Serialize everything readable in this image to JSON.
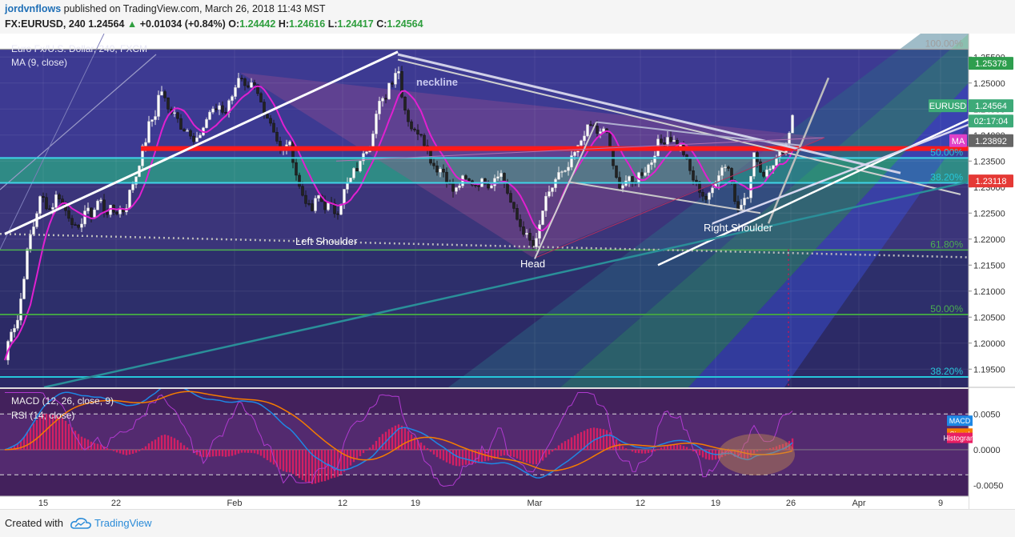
{
  "header": {
    "author": "jordvnflows",
    "published": "published on TradingView.com, March 26, 2018 11:43 MST",
    "symbol": "FX:EURUSD, 240",
    "last": "1.24564",
    "change": "+0.01034 (+0.84%)",
    "o_label": "O:",
    "o": "1.24442",
    "h_label": "H:",
    "h": "1.24616",
    "l_label": "L:",
    "l": "1.24417",
    "c_label": "C:",
    "c": "1.24564"
  },
  "chart_legend": {
    "title": "Euro Fx/U.S. Dollar, 240, FXCM",
    "ma": "MA (9, close)",
    "macd": "MACD (12, 26, close, 9)",
    "rsi": "RSI (14, close)"
  },
  "annotations": {
    "neckline": "neckline",
    "left_shoulder": "Left Shoulder",
    "head": "Head",
    "right_shoulder": "Right Shoulder"
  },
  "fib_labels": [
    {
      "text": "100.00%",
      "price": 1.2565,
      "color": "#9e9e9e"
    },
    {
      "text": "50.00%",
      "price": 1.2356,
      "color": "#26c6da"
    },
    {
      "text": "38.20%",
      "price": 1.2308,
      "color": "#26c6da"
    },
    {
      "text": "61.80%",
      "price": 1.2179,
      "color": "#4caf50"
    },
    {
      "text": "50.00%",
      "price": 1.2055,
      "color": "#4caf50"
    },
    {
      "text": "38.20%",
      "price": 1.1935,
      "color": "#26c6da"
    }
  ],
  "price_tags": [
    {
      "text": "1.25378",
      "price": 1.25378,
      "bg": "#2e9e4e",
      "fg": "#ffffff"
    },
    {
      "text": "EURUSD",
      "price": 1.24564,
      "bg": "#3daa78",
      "fg": "#ffffff"
    },
    {
      "text": "1.24564",
      "price": 1.24564,
      "bg": "#3daa78",
      "fg": "#ffffff"
    },
    {
      "text": "02:17:04",
      "price": 1.2427,
      "bg": "#3daa78",
      "fg": "#ffffff"
    },
    {
      "text": "MA",
      "price": 1.23892,
      "bg": "#e040c8",
      "fg": "#ffffff"
    },
    {
      "text": "1.23892",
      "price": 1.23892,
      "bg": "#666666",
      "fg": "#ffffff"
    },
    {
      "text": "1.23118",
      "price": 1.23118,
      "bg": "#e53935",
      "fg": "#ffffff"
    }
  ],
  "macd_tags": [
    {
      "text": "MACD",
      "value": 0.004,
      "bg": "#1e88e5"
    },
    {
      "text": "Signal",
      "value": 0.0022,
      "bg": "#f57c00"
    },
    {
      "text": "Histogram",
      "value": 0.0016,
      "bg": "#e91e63"
    }
  ],
  "footer": {
    "created": "Created with",
    "brand": "TradingView"
  },
  "colors": {
    "background": "#ffffff",
    "band_purple": "#3f3a8a",
    "band_teal": "#2d8a86",
    "ma_line": "#e020d0",
    "support_red": "#ff1a1a",
    "bull_candle": "#ffffff",
    "bear_candle": "#222222",
    "macd_line": "#1e88e5",
    "signal_line": "#f57c00",
    "histogram": "#e91e63",
    "rsi_line": "#9c27b0"
  },
  "chart_data": {
    "type": "candlestick",
    "symbol": "EURUSD",
    "timeframe": "240",
    "ylim": [
      1.1915,
      1.2595
    ],
    "y_ticks": [
      "1.25500",
      "1.25000",
      "1.24500",
      "1.24000",
      "1.23500",
      "1.23000",
      "1.22500",
      "1.22000",
      "1.21500",
      "1.21000",
      "1.20500",
      "1.20000",
      "1.19500"
    ],
    "y_tick_values": [
      1.255,
      1.25,
      1.245,
      1.24,
      1.235,
      1.23,
      1.225,
      1.22,
      1.215,
      1.21,
      1.205,
      1.2,
      1.195
    ],
    "x_ticks": [
      "15",
      "22",
      "Feb",
      "12",
      "19",
      "Mar",
      "12",
      "19",
      "26",
      "Apr",
      "9"
    ],
    "x_tick_pos": [
      54,
      145,
      293,
      428,
      519,
      668,
      800,
      894,
      988,
      1073,
      1175
    ],
    "close_path": [
      [
        0,
        1.194
      ],
      [
        4,
        1.195
      ],
      [
        8,
        1.1985
      ],
      [
        12,
        1.202
      ],
      [
        16,
        1.2035
      ],
      [
        20,
        1.203
      ],
      [
        24,
        1.206
      ],
      [
        28,
        1.211
      ],
      [
        32,
        1.215
      ],
      [
        36,
        1.22
      ],
      [
        40,
        1.2215
      ],
      [
        44,
        1.2235
      ],
      [
        48,
        1.227
      ],
      [
        52,
        1.2285
      ],
      [
        56,
        1.227
      ],
      [
        60,
        1.226
      ],
      [
        64,
        1.2255
      ],
      [
        68,
        1.2275
      ],
      [
        72,
        1.229
      ],
      [
        76,
        1.2275
      ],
      [
        80,
        1.226
      ],
      [
        84,
        1.225
      ],
      [
        88,
        1.224
      ],
      [
        92,
        1.223
      ],
      [
        96,
        1.221
      ],
      [
        100,
        1.222
      ],
      [
        104,
        1.225
      ],
      [
        108,
        1.226
      ],
      [
        112,
        1.2245
      ],
      [
        116,
        1.225
      ],
      [
        120,
        1.2265
      ],
      [
        124,
        1.228
      ],
      [
        128,
        1.2265
      ],
      [
        132,
        1.2245
      ],
      [
        136,
        1.226
      ],
      [
        140,
        1.2255
      ],
      [
        144,
        1.225
      ],
      [
        148,
        1.2255
      ],
      [
        152,
        1.226
      ],
      [
        156,
        1.225
      ],
      [
        160,
        1.228
      ],
      [
        164,
        1.23
      ],
      [
        168,
        1.2315
      ],
      [
        172,
        1.233
      ],
      [
        176,
        1.2365
      ],
      [
        180,
        1.238
      ],
      [
        184,
        1.24
      ],
      [
        188,
        1.244
      ],
      [
        192,
        1.242
      ],
      [
        196,
        1.246
      ],
      [
        200,
        1.249
      ],
      [
        204,
        1.248
      ],
      [
        208,
        1.2455
      ],
      [
        212,
        1.244
      ],
      [
        216,
        1.2455
      ],
      [
        220,
        1.244
      ],
      [
        224,
        1.2425
      ],
      [
        228,
        1.241
      ],
      [
        232,
        1.242
      ],
      [
        236,
        1.24
      ],
      [
        240,
        1.239
      ],
      [
        244,
        1.238
      ],
      [
        248,
        1.2395
      ],
      [
        252,
        1.241
      ],
      [
        256,
        1.242
      ],
      [
        260,
        1.244
      ],
      [
        264,
        1.245
      ],
      [
        268,
        1.244
      ],
      [
        272,
        1.246
      ],
      [
        276,
        1.2455
      ],
      [
        280,
        1.244
      ],
      [
        284,
        1.2455
      ],
      [
        288,
        1.247
      ],
      [
        292,
        1.249
      ],
      [
        296,
        1.25
      ],
      [
        300,
        1.251
      ],
      [
        304,
        1.2495
      ],
      [
        308,
        1.248
      ],
      [
        312,
        1.249
      ],
      [
        316,
        1.25
      ],
      [
        320,
        1.2485
      ],
      [
        324,
        1.247
      ],
      [
        328,
        1.2455
      ],
      [
        332,
        1.244
      ],
      [
        336,
        1.243
      ],
      [
        340,
        1.242
      ],
      [
        344,
        1.24
      ],
      [
        348,
        1.238
      ],
      [
        352,
        1.236
      ],
      [
        356,
        1.238
      ],
      [
        360,
        1.239
      ],
      [
        364,
        1.237
      ],
      [
        368,
        1.234
      ],
      [
        372,
        1.231
      ],
      [
        376,
        1.229
      ],
      [
        380,
        1.228
      ],
      [
        384,
        1.227
      ],
      [
        388,
        1.225
      ],
      [
        392,
        1.226
      ],
      [
        396,
        1.2285
      ],
      [
        400,
        1.228
      ],
      [
        404,
        1.2265
      ],
      [
        408,
        1.226
      ],
      [
        412,
        1.227
      ],
      [
        416,
        1.2255
      ],
      [
        420,
        1.225
      ],
      [
        424,
        1.226
      ],
      [
        428,
        1.2285
      ],
      [
        432,
        1.23
      ],
      [
        436,
        1.231
      ],
      [
        440,
        1.232
      ],
      [
        444,
        1.234
      ],
      [
        448,
        1.233
      ],
      [
        452,
        1.236
      ],
      [
        456,
        1.238
      ],
      [
        460,
        1.237
      ],
      [
        464,
        1.239
      ],
      [
        468,
        1.243
      ],
      [
        472,
        1.245
      ],
      [
        476,
        1.247
      ],
      [
        480,
        1.246
      ],
      [
        484,
        1.249
      ],
      [
        488,
        1.251
      ],
      [
        492,
        1.25
      ],
      [
        496,
        1.2545
      ],
      [
        500,
        1.25
      ],
      [
        504,
        1.246
      ],
      [
        508,
        1.244
      ],
      [
        512,
        1.242
      ],
      [
        516,
        1.241
      ],
      [
        520,
        1.24
      ],
      [
        524,
        1.2415
      ],
      [
        528,
        1.2395
      ],
      [
        532,
        1.238
      ],
      [
        536,
        1.236
      ],
      [
        540,
        1.2345
      ],
      [
        544,
        1.234
      ],
      [
        548,
        1.233
      ],
      [
        552,
        1.234
      ],
      [
        556,
        1.232
      ],
      [
        560,
        1.231
      ],
      [
        564,
        1.2295
      ],
      [
        568,
        1.229
      ],
      [
        572,
        1.23
      ],
      [
        576,
        1.231
      ],
      [
        580,
        1.232
      ],
      [
        584,
        1.2305
      ],
      [
        588,
        1.2315
      ],
      [
        592,
        1.23
      ],
      [
        596,
        1.231
      ],
      [
        600,
        1.2305
      ],
      [
        604,
        1.2315
      ],
      [
        608,
        1.231
      ],
      [
        612,
        1.23
      ],
      [
        616,
        1.2315
      ],
      [
        620,
        1.2325
      ],
      [
        624,
        1.233
      ],
      [
        628,
        1.232
      ],
      [
        632,
        1.23
      ],
      [
        636,
        1.228
      ],
      [
        640,
        1.226
      ],
      [
        644,
        1.2245
      ],
      [
        648,
        1.223
      ],
      [
        652,
        1.222
      ],
      [
        656,
        1.221
      ],
      [
        660,
        1.22
      ],
      [
        664,
        1.219
      ],
      [
        668,
        1.218
      ],
      [
        672,
        1.221
      ],
      [
        676,
        1.224
      ],
      [
        680,
        1.227
      ],
      [
        684,
        1.228
      ],
      [
        688,
        1.229
      ],
      [
        692,
        1.231
      ],
      [
        696,
        1.232
      ],
      [
        700,
        1.233
      ],
      [
        704,
        1.232
      ],
      [
        708,
        1.233
      ],
      [
        712,
        1.2345
      ],
      [
        716,
        1.236
      ],
      [
        720,
        1.237
      ],
      [
        724,
        1.238
      ],
      [
        728,
        1.24
      ],
      [
        732,
        1.241
      ],
      [
        736,
        1.2415
      ],
      [
        740,
        1.242
      ],
      [
        744,
        1.241
      ],
      [
        748,
        1.24
      ],
      [
        752,
        1.2405
      ],
      [
        756,
        1.241
      ],
      [
        760,
        1.24
      ],
      [
        764,
        1.235
      ],
      [
        768,
        1.232
      ],
      [
        772,
        1.231
      ],
      [
        776,
        1.23
      ],
      [
        780,
        1.231
      ],
      [
        784,
        1.2315
      ],
      [
        788,
        1.231
      ],
      [
        792,
        1.2305
      ],
      [
        796,
        1.232
      ],
      [
        800,
        1.233
      ],
      [
        804,
        1.2325
      ],
      [
        808,
        1.234
      ],
      [
        812,
        1.2345
      ],
      [
        816,
        1.2355
      ],
      [
        820,
        1.238
      ],
      [
        824,
        1.239
      ],
      [
        828,
        1.238
      ],
      [
        832,
        1.24
      ],
      [
        836,
        1.2395
      ],
      [
        840,
        1.239
      ],
      [
        844,
        1.2385
      ],
      [
        848,
        1.238
      ],
      [
        852,
        1.2375
      ],
      [
        856,
        1.2355
      ],
      [
        860,
        1.234
      ],
      [
        864,
        1.232
      ],
      [
        868,
        1.231
      ],
      [
        872,
        1.23
      ],
      [
        876,
        1.229
      ],
      [
        880,
        1.228
      ],
      [
        884,
        1.2275
      ],
      [
        888,
        1.229
      ],
      [
        892,
        1.2305
      ],
      [
        896,
        1.232
      ],
      [
        900,
        1.2335
      ],
      [
        904,
        1.234
      ],
      [
        908,
        1.2345
      ],
      [
        912,
        1.233
      ],
      [
        916,
        1.229
      ],
      [
        920,
        1.226
      ],
      [
        924,
        1.2265
      ],
      [
        928,
        1.228
      ],
      [
        932,
        1.227
      ],
      [
        936,
        1.229
      ],
      [
        940,
        1.235
      ],
      [
        944,
        1.237
      ],
      [
        948,
        1.234
      ],
      [
        952,
        1.232
      ],
      [
        956,
        1.233
      ],
      [
        960,
        1.234
      ],
      [
        964,
        1.2345
      ],
      [
        968,
        1.235
      ],
      [
        972,
        1.2355
      ],
      [
        976,
        1.237
      ],
      [
        980,
        1.2375
      ],
      [
        984,
        1.239
      ],
      [
        988,
        1.2425
      ],
      [
        992,
        1.2456
      ]
    ],
    "macd_ylim": [
      -0.0065,
      0.0085
    ],
    "macd_ticks": [
      "0.0050",
      "0.0000",
      "-0.0050"
    ],
    "macd_tick_values": [
      0.005,
      0.0,
      -0.005
    ]
  }
}
